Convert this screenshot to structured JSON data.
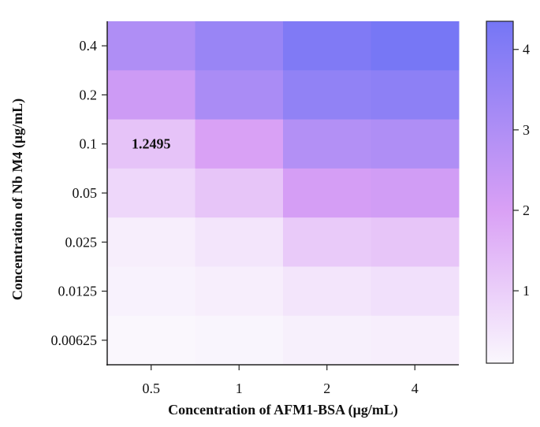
{
  "chart_data": {
    "type": "heatmap",
    "title": "",
    "xlabel": "Concentration of AFM1-BSA (μg/mL)",
    "ylabel": "Concentration of Nb M4 (μg/mL)",
    "x_categories": [
      "0.5",
      "1",
      "2",
      "4"
    ],
    "y_categories": [
      "0.4",
      "0.2",
      "0.1",
      "0.05",
      "0.025",
      "0.0125",
      "0.00625"
    ],
    "values": [
      [
        3.0,
        3.5,
        4.1,
        4.3
      ],
      [
        2.3,
        3.1,
        3.7,
        3.8
      ],
      [
        1.2495,
        2.0,
        2.9,
        3.0
      ],
      [
        0.8,
        1.2,
        2.1,
        2.2
      ],
      [
        0.3,
        0.5,
        1.1,
        1.2
      ],
      [
        0.2,
        0.3,
        0.5,
        0.6
      ],
      [
        0.1,
        0.15,
        0.25,
        0.3
      ]
    ],
    "annotations": [
      {
        "row": 2,
        "col": 0,
        "text": "1.2495"
      }
    ],
    "colorbar": {
      "range": [
        0.1,
        4.35
      ],
      "ticks": [
        1,
        2,
        3,
        4
      ],
      "tick_labels": [
        "1",
        "2",
        "3",
        "4"
      ],
      "colors": {
        "low": "#faf7fd",
        "mid": "#d9a0f5",
        "high": "#7576f5"
      }
    },
    "grid": false,
    "legend": "colorbar-right"
  }
}
